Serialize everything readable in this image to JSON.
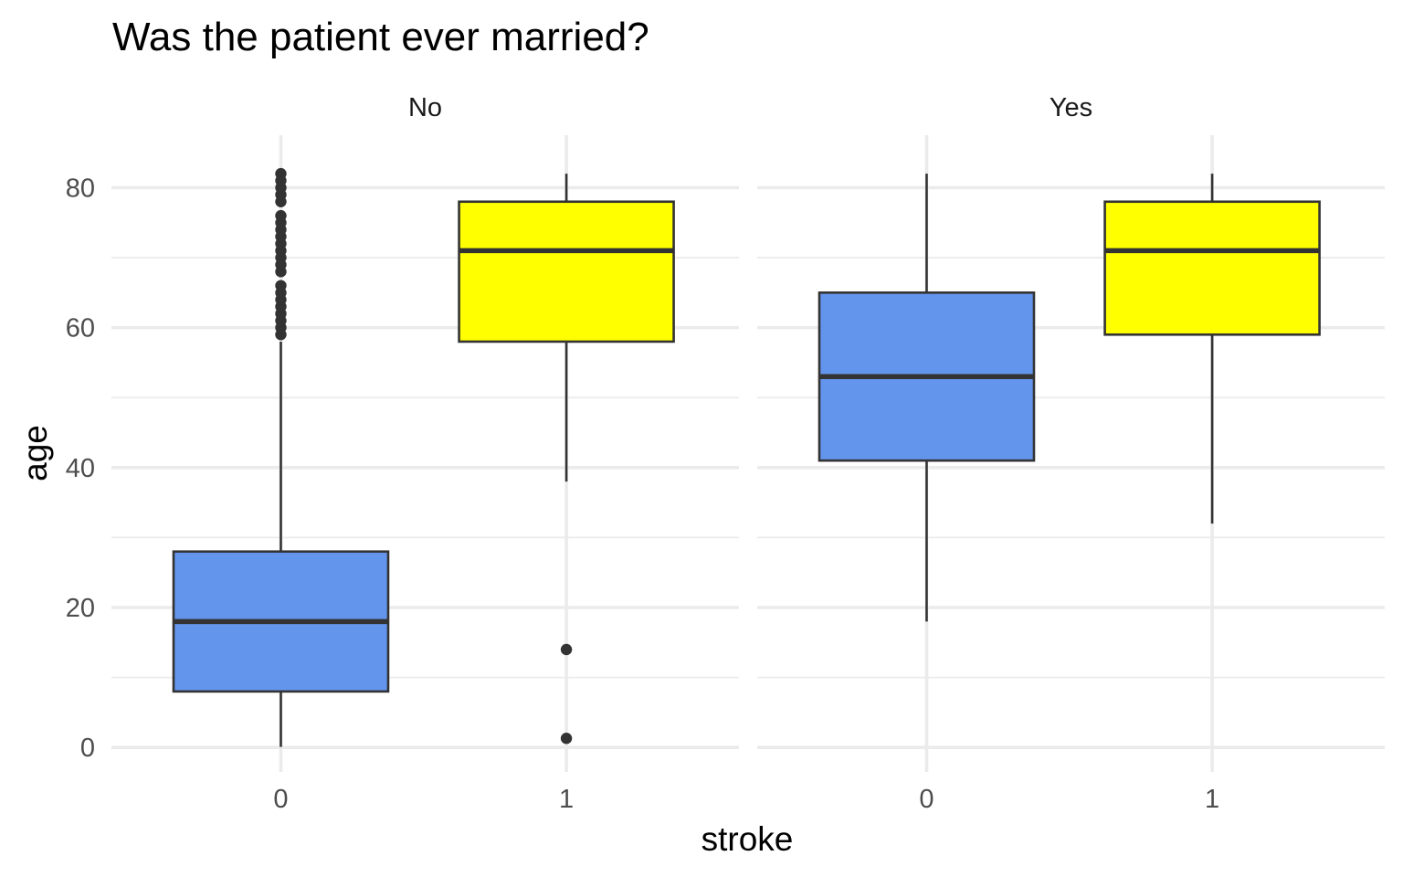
{
  "chart_data": {
    "type": "boxplot",
    "title": "Was the patient ever married?",
    "xlabel": "stroke",
    "ylabel": "age",
    "categories": [
      "0",
      "1"
    ],
    "ylim": [
      -3.5,
      87.5
    ],
    "yticks": [
      0,
      20,
      40,
      60,
      80
    ],
    "grid": true,
    "legend": "none",
    "colors": {
      "0": "#6495ED",
      "1": "#FFFF00",
      "outline": "#333333",
      "outlier": "#333333"
    },
    "facets": [
      {
        "label": "No",
        "boxes": [
          {
            "category": "0",
            "min": 0.08,
            "q1": 8,
            "median": 18,
            "q3": 28,
            "max": 58,
            "outliers": [
              59,
              60,
              61,
              62,
              63,
              64,
              65,
              66,
              68,
              69,
              70,
              71,
              72,
              73,
              74,
              75,
              76,
              78,
              79,
              80,
              81,
              82
            ]
          },
          {
            "category": "1",
            "min": 38,
            "q1": 58,
            "median": 71,
            "q3": 78,
            "max": 82,
            "outliers": [
              14,
              1.3
            ]
          }
        ]
      },
      {
        "label": "Yes",
        "boxes": [
          {
            "category": "0",
            "min": 18,
            "q1": 41,
            "median": 53,
            "q3": 65,
            "max": 82,
            "outliers": []
          },
          {
            "category": "1",
            "min": 32,
            "q1": 59,
            "median": 71,
            "q3": 78,
            "max": 82,
            "outliers": []
          }
        ]
      }
    ]
  }
}
